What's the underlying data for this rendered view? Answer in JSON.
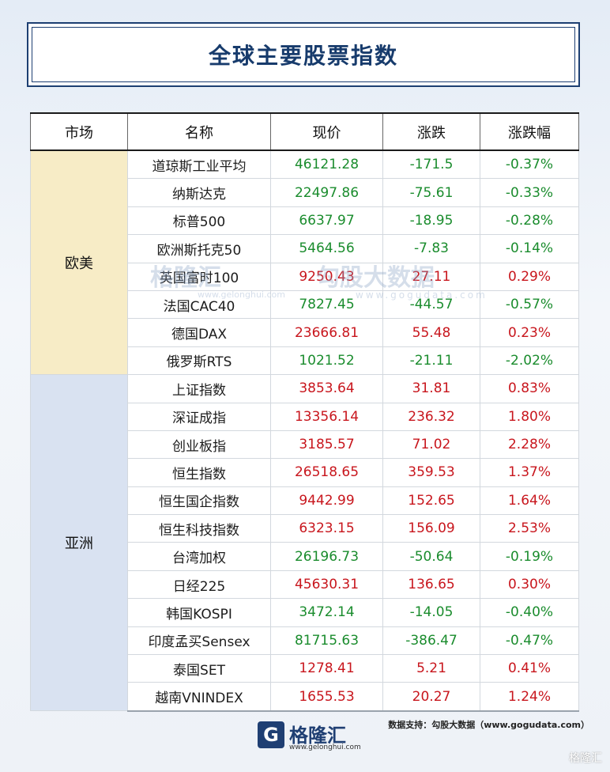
{
  "title": "全球主要股票指数",
  "headers": {
    "market": "市场",
    "name": "名称",
    "price": "现价",
    "change": "涨跌",
    "pct": "涨跌幅"
  },
  "regions": {
    "europe_america": "欧美",
    "asia": "亚洲"
  },
  "rows": [
    {
      "name": "道琼斯工业平均",
      "price": "46121.28",
      "change": "-171.5",
      "pct": "-0.37%"
    },
    {
      "name": "纳斯达克",
      "price": "22497.86",
      "change": "-75.61",
      "pct": "-0.33%"
    },
    {
      "name": "标普500",
      "price": "6637.97",
      "change": "-18.95",
      "pct": "-0.28%"
    },
    {
      "name": "欧洲斯托克50",
      "price": "5464.56",
      "change": "-7.83",
      "pct": "-0.14%"
    },
    {
      "name": "英国富时100",
      "price": "9250.43",
      "change": "27.11",
      "pct": "0.29%"
    },
    {
      "name": "法国CAC40",
      "price": "7827.45",
      "change": "-44.57",
      "pct": "-0.57%"
    },
    {
      "name": "德国DAX",
      "price": "23666.81",
      "change": "55.48",
      "pct": "0.23%"
    },
    {
      "name": "俄罗斯RTS",
      "price": "1021.52",
      "change": "-21.11",
      "pct": "-2.02%"
    },
    {
      "name": "上证指数",
      "price": "3853.64",
      "change": "31.81",
      "pct": "0.83%"
    },
    {
      "name": "深证成指",
      "price": "13356.14",
      "change": "236.32",
      "pct": "1.80%"
    },
    {
      "name": "创业板指",
      "price": "3185.57",
      "change": "71.02",
      "pct": "2.28%"
    },
    {
      "name": "恒生指数",
      "price": "26518.65",
      "change": "359.53",
      "pct": "1.37%"
    },
    {
      "name": "恒生国企指数",
      "price": "9442.99",
      "change": "152.65",
      "pct": "1.64%"
    },
    {
      "name": "恒生科技指数",
      "price": "6323.15",
      "change": "156.09",
      "pct": "2.53%"
    },
    {
      "name": "台湾加权",
      "price": "26196.73",
      "change": "-50.64",
      "pct": "-0.19%"
    },
    {
      "name": "日经225",
      "price": "45630.31",
      "change": "136.65",
      "pct": "0.30%"
    },
    {
      "name": "韩国KOSPI",
      "price": "3472.14",
      "change": "-14.05",
      "pct": "-0.40%"
    },
    {
      "name": "印度孟买Sensex",
      "price": "81715.63",
      "change": "-386.47",
      "pct": "-0.47%"
    },
    {
      "name": "泰国SET",
      "price": "1278.41",
      "change": "5.21",
      "pct": "0.41%"
    },
    {
      "name": "越南VNINDEX",
      "price": "1655.53",
      "change": "20.27",
      "pct": "1.24%"
    }
  ],
  "colors": {
    "up": "#c8161d",
    "down": "#1a8c2d",
    "title": "#173b6c",
    "europe_bg": "#f7ecc6",
    "asia_bg": "#d9e2f1"
  },
  "watermark": {
    "brand": "格隆汇",
    "brand_url": "www.gelonghui.com",
    "partner": "勾股大数据",
    "partner_url": "www.gogudata.com"
  },
  "footer": {
    "logo_text": "格隆汇",
    "logo_url": "www.gelonghui.com",
    "source": "数据支持：勾股大数据（www.gogudata.com）",
    "corner": "格隆汇"
  }
}
